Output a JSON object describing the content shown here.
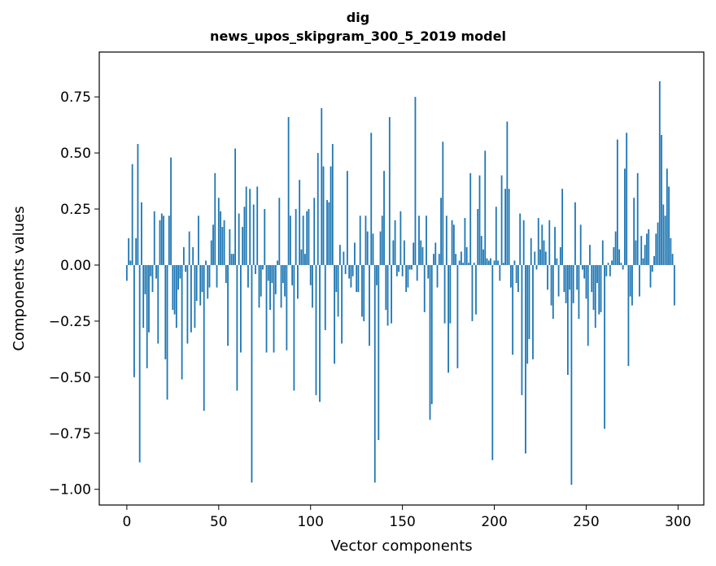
{
  "chart_data": {
    "type": "bar",
    "title_line1": "dig",
    "title_line2": "news_upos_skipgram_300_5_2019 model",
    "xlabel": "Vector components",
    "ylabel": "Components values",
    "xlim": [
      -15,
      314
    ],
    "ylim": [
      -1.07,
      0.95
    ],
    "xticks": [
      0,
      50,
      100,
      150,
      200,
      250,
      300
    ],
    "yticks": [
      -1.0,
      -0.75,
      -0.5,
      -0.25,
      0.0,
      0.25,
      0.5,
      0.75
    ],
    "xtick_labels": [
      "0",
      "50",
      "100",
      "150",
      "200",
      "250",
      "300"
    ],
    "ytick_labels": [
      "−1.00",
      "−0.75",
      "−0.50",
      "−0.25",
      "0.00",
      "0.25",
      "0.50",
      "0.75"
    ],
    "bar_color": "#1f77b4",
    "values": [
      -0.07,
      0.12,
      0.02,
      0.45,
      -0.5,
      0.12,
      0.54,
      -0.88,
      0.28,
      -0.28,
      -0.13,
      -0.46,
      -0.3,
      -0.05,
      -0.12,
      0.24,
      -0.06,
      -0.35,
      0.2,
      0.23,
      0.22,
      -0.42,
      -0.6,
      0.22,
      0.48,
      -0.2,
      -0.22,
      -0.28,
      -0.11,
      -0.06,
      -0.51,
      0.08,
      -0.03,
      -0.35,
      0.15,
      -0.3,
      0.08,
      -0.28,
      -0.16,
      0.22,
      -0.18,
      -0.12,
      -0.65,
      0.02,
      -0.15,
      -0.1,
      0.11,
      0.18,
      0.41,
      -0.1,
      0.3,
      0.24,
      0.17,
      0.2,
      -0.08,
      -0.36,
      0.16,
      0.05,
      0.05,
      0.52,
      -0.56,
      0.23,
      -0.39,
      0.17,
      0.26,
      0.35,
      -0.1,
      0.34,
      -0.97,
      0.27,
      -0.04,
      0.35,
      -0.19,
      -0.14,
      -0.02,
      0.25,
      -0.39,
      -0.07,
      -0.2,
      -0.08,
      -0.39,
      -0.13,
      0.02,
      0.3,
      -0.19,
      -0.08,
      -0.14,
      -0.38,
      0.66,
      0.22,
      -0.09,
      -0.56,
      0.25,
      -0.15,
      0.38,
      0.07,
      0.22,
      0.05,
      0.24,
      0.25,
      -0.09,
      -0.19,
      0.3,
      -0.58,
      0.5,
      -0.61,
      0.7,
      0.44,
      -0.29,
      0.29,
      0.28,
      0.44,
      0.54,
      -0.44,
      -0.12,
      -0.23,
      0.09,
      -0.35,
      0.06,
      -0.04,
      0.42,
      -0.06,
      -0.1,
      -0.05,
      0.1,
      -0.12,
      -0.12,
      0.22,
      -0.23,
      -0.25,
      0.22,
      0.15,
      -0.36,
      0.59,
      0.14,
      -0.97,
      -0.09,
      -0.78,
      0.15,
      0.22,
      0.42,
      -0.2,
      -0.27,
      0.66,
      -0.26,
      0.11,
      0.2,
      -0.05,
      -0.03,
      0.24,
      -0.05,
      0.11,
      -0.12,
      -0.1,
      -0.02,
      -0.02,
      0.1,
      0.75,
      -0.07,
      0.22,
      0.11,
      0.08,
      -0.21,
      0.22,
      -0.06,
      -0.69,
      -0.62,
      0.05,
      0.1,
      -0.1,
      0.05,
      0.3,
      0.55,
      -0.26,
      0.22,
      -0.48,
      -0.26,
      0.2,
      0.18,
      0.05,
      -0.46,
      0.02,
      0.06,
      0.01,
      0.21,
      0.08,
      0.01,
      0.41,
      -0.25,
      0.01,
      -0.22,
      0.25,
      0.4,
      0.13,
      0.07,
      0.51,
      0.03,
      0.02,
      0.03,
      -0.87,
      0.02,
      0.26,
      0.02,
      -0.07,
      0.4,
      0.01,
      0.34,
      0.64,
      0.34,
      -0.1,
      -0.4,
      0.02,
      -0.08,
      -0.12,
      0.23,
      -0.58,
      0.2,
      -0.84,
      -0.44,
      -0.33,
      0.12,
      -0.42,
      0.06,
      -0.02,
      0.21,
      0.07,
      0.18,
      0.11,
      0.06,
      -0.11,
      0.2,
      -0.18,
      -0.24,
      0.17,
      0.03,
      -0.14,
      0.08,
      0.34,
      -0.12,
      -0.17,
      -0.49,
      -0.11,
      -0.98,
      -0.17,
      0.28,
      -0.11,
      -0.24,
      0.18,
      -0.02,
      -0.06,
      -0.15,
      -0.36,
      0.09,
      -0.12,
      -0.2,
      -0.28,
      -0.08,
      -0.22,
      -0.21,
      0.11,
      -0.73,
      -0.05,
      0.01,
      -0.05,
      0.02,
      0.08,
      0.15,
      0.56,
      0.07,
      0.01,
      -0.02,
      0.43,
      0.59,
      -0.45,
      -0.14,
      -0.18,
      0.3,
      0.11,
      0.41,
      -0.14,
      0.13,
      0.03,
      0.09,
      0.14,
      0.16,
      -0.1,
      -0.03,
      0.04,
      0.14,
      0.19,
      0.82,
      0.58,
      0.27,
      0.22,
      0.43,
      0.35,
      0.12,
      0.05,
      -0.18
    ]
  }
}
